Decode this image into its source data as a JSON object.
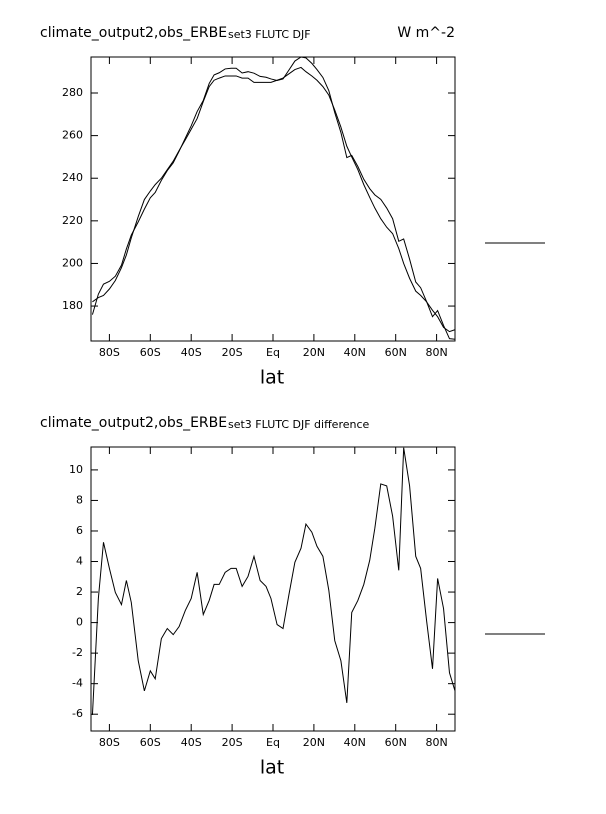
{
  "chart_data": [
    {
      "type": "line",
      "title": "climate_output2,obs_ERBE",
      "subtitle": "set3 FLUTC DJF",
      "units": "W m^-2",
      "x_label": "lat",
      "x": [
        -88.3,
        -85.4,
        -82.9,
        -80,
        -77.1,
        -74.1,
        -71.7,
        -69.3,
        -65.9,
        -62.9,
        -60,
        -57.6,
        -54.6,
        -51.7,
        -48.8,
        -45.9,
        -42.9,
        -40,
        -37.1,
        -34.1,
        -31.2,
        -28.8,
        -26.3,
        -23.4,
        -20.5,
        -18,
        -15.1,
        -12.2,
        -9.3,
        -6.3,
        -3.4,
        -1,
        2,
        4.9,
        7.8,
        10.7,
        13.7,
        16.1,
        19,
        21.5,
        24.4,
        27.3,
        30.2,
        33.2,
        36.1,
        38.5,
        41.5,
        44.4,
        47.3,
        49.8,
        52.7,
        55.6,
        58.5,
        61.5,
        63.9,
        66.8,
        69.8,
        72.2,
        75.1,
        78,
        80.5,
        83.4,
        86.3,
        89.3
      ],
      "series": [
        {
          "color": "#000000",
          "values": [
            176.0,
            185.6,
            190.3,
            191.6,
            194.0,
            199.2,
            206.8,
            213.3,
            219.5,
            225.5,
            230.8,
            233.3,
            239.0,
            243.6,
            247.2,
            252.7,
            258.8,
            264.6,
            271.3,
            276.5,
            284.5,
            288.5,
            289.5,
            291.3,
            291.6,
            291.6,
            289.4,
            290.0,
            289.3,
            287.8,
            287.4,
            286.6,
            285.9,
            286.6,
            290.8,
            295.0,
            296.9,
            296.5,
            293.9,
            291.0,
            287.3,
            281.1,
            270.8,
            261.5,
            249.7,
            250.7,
            245.5,
            239.5,
            235.1,
            232.2,
            230.1,
            226.0,
            221.0,
            210.4,
            211.5,
            202.0,
            191.3,
            188.6,
            182.1,
            175.0,
            177.9,
            170.9,
            164.7,
            164.4
          ]
        },
        {
          "color": "#000000",
          "values": [
            182,
            184,
            185,
            188,
            192,
            198,
            204,
            212,
            222,
            230,
            234,
            237,
            240,
            244,
            248,
            253,
            258,
            263,
            268,
            276,
            283,
            286,
            287,
            288,
            288,
            288,
            287,
            287,
            285,
            285,
            285,
            285,
            286,
            287,
            289,
            291,
            292,
            290,
            288,
            286,
            283,
            279,
            272,
            264,
            255,
            250,
            244,
            237,
            231,
            226,
            221,
            217,
            214,
            207,
            200,
            193,
            187,
            185,
            182,
            178,
            175,
            170,
            168,
            169
          ]
        }
      ],
      "xlim": [
        -89,
        89
      ],
      "ylim": [
        163.6,
        296.9
      ],
      "xticks": [
        {
          "value": -80,
          "label": "80S"
        },
        {
          "value": -60,
          "label": "60S"
        },
        {
          "value": -40,
          "label": "40S"
        },
        {
          "value": -20,
          "label": "20S"
        },
        {
          "value": 0,
          "label": "Eq"
        },
        {
          "value": 20,
          "label": "20N"
        },
        {
          "value": 40,
          "label": "40N"
        },
        {
          "value": 60,
          "label": "60N"
        },
        {
          "value": 80,
          "label": "80N"
        }
      ],
      "yticks": [
        180,
        200,
        220,
        240,
        260,
        280
      ]
    },
    {
      "type": "line",
      "title": "climate_output2,obs_ERBE",
      "subtitle": "set3 FLUTC DJF difference",
      "x_label": "lat",
      "x": [
        -88.3,
        -85.4,
        -82.9,
        -80,
        -77.1,
        -74.1,
        -71.7,
        -69.3,
        -65.9,
        -62.9,
        -60,
        -57.6,
        -54.6,
        -51.7,
        -48.8,
        -45.9,
        -42.9,
        -40,
        -37.1,
        -34.1,
        -31.2,
        -28.8,
        -26.3,
        -23.4,
        -20.5,
        -18,
        -15.1,
        -12.2,
        -9.3,
        -6.3,
        -3.4,
        -1,
        2,
        4.9,
        7.8,
        10.7,
        13.7,
        16.1,
        19,
        21.5,
        24.4,
        27.3,
        30.2,
        33.2,
        36.1,
        38.5,
        41.5,
        44.4,
        47.3,
        49.8,
        52.7,
        55.6,
        58.5,
        61.5,
        63.9,
        66.8,
        69.8,
        72.2,
        75.1,
        78,
        80.5,
        83.4,
        86.3,
        89.3
      ],
      "series": [
        {
          "color": "#000000",
          "values": [
            -6.05,
            1.58,
            5.26,
            3.55,
            1.97,
            1.18,
            2.76,
            1.32,
            -2.5,
            -4.47,
            -3.16,
            -3.68,
            -1.05,
            -0.39,
            -0.79,
            -0.26,
            0.79,
            1.58,
            3.29,
            0.53,
            1.45,
            2.5,
            2.5,
            3.29,
            3.55,
            3.55,
            2.37,
            3.03,
            4.34,
            2.76,
            2.37,
            1.58,
            -0.13,
            -0.39,
            1.84,
            3.95,
            4.87,
            6.45,
            5.92,
            5.0,
            4.34,
            2.11,
            -1.18,
            -2.5,
            -5.26,
            0.66,
            1.45,
            2.5,
            4.08,
            6.18,
            9.08,
            8.95,
            6.97,
            3.42,
            11.45,
            8.95,
            4.34,
            3.55,
            0.13,
            -3.03,
            2.89,
            0.92,
            -3.29,
            -4.61
          ]
        }
      ],
      "xlim": [
        -89,
        89
      ],
      "ylim": [
        -7.1,
        11.5
      ],
      "xticks": [
        {
          "value": -80,
          "label": "80S"
        },
        {
          "value": -60,
          "label": "60S"
        },
        {
          "value": -40,
          "label": "40S"
        },
        {
          "value": -20,
          "label": "20S"
        },
        {
          "value": 0,
          "label": "Eq"
        },
        {
          "value": 20,
          "label": "20N"
        },
        {
          "value": 40,
          "label": "40N"
        },
        {
          "value": 60,
          "label": "60N"
        },
        {
          "value": 80,
          "label": "80N"
        }
      ],
      "yticks": [
        -6,
        -4,
        -2,
        0,
        2,
        4,
        6,
        8,
        10
      ]
    }
  ]
}
